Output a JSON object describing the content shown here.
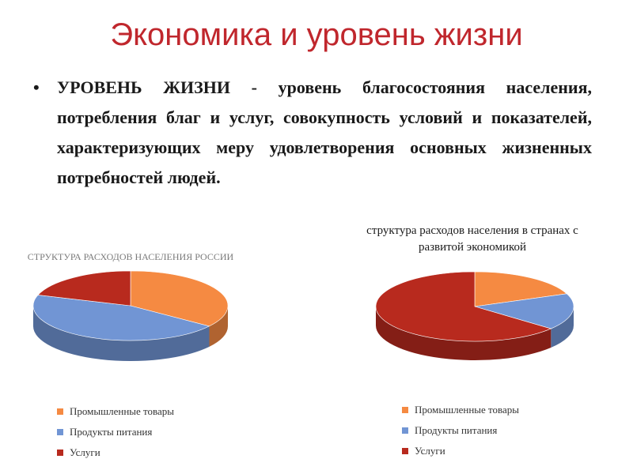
{
  "title": "Экономика и уровень жизни",
  "bullet": {
    "icon": "bullet-dot",
    "text": "УРОВЕНЬ ЖИЗНИ - уровень благосостояния населения, потребления благ и услуг, совокупность условий и показателей, характеризующих меру удовлетворения основных жизненных потребностей людей."
  },
  "colors": {
    "industrial": "#f58a42",
    "food": "#7195d4",
    "services": "#b82a1e",
    "title": "#c0272d"
  },
  "chart_data": [
    {
      "type": "pie",
      "title": "СТРУКТУРА РАСХОДОВ НАСЕЛЕНИЯ РОССИИ",
      "categories": [
        "Промышленные товары",
        "Продукты питания",
        "Услуги"
      ],
      "values": [
        35,
        45,
        20
      ],
      "legend_position": "bottom",
      "style": "3d"
    },
    {
      "type": "pie",
      "title": "структура расходов населения в странах с развитой экономикой",
      "categories": [
        "Промышленные товары",
        "Продукты питания",
        "Услуги"
      ],
      "values": [
        19,
        17,
        64
      ],
      "legend_position": "bottom",
      "style": "3d"
    }
  ]
}
